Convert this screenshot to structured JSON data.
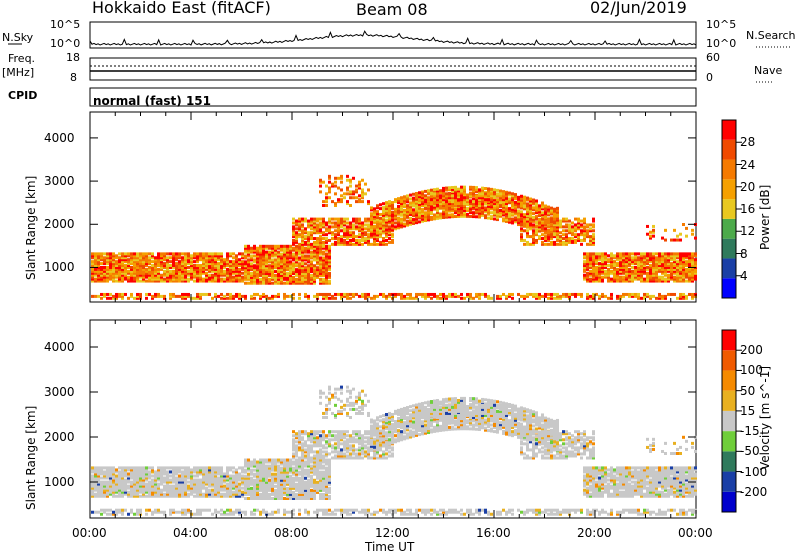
{
  "header": {
    "station": "Hokkaido East (fitACF)",
    "beam": "Beam 08",
    "date": "02/Jun/2019"
  },
  "top_panels": {
    "nsky_label": "N.Sky",
    "nsky_ticks": [
      "10^5",
      "10^0"
    ],
    "nsearch_label": "N.Search",
    "nsearch_ticks": [
      "10^5",
      "10^0"
    ],
    "freq_label": "Freq.",
    "freq_unit": "[MHz]",
    "freq_ticks": [
      "18",
      "8"
    ],
    "nave_label": "Nave",
    "nave_ticks": [
      "60",
      "0"
    ],
    "cpid_label": "CPID",
    "cpid_value": "normal (fast) 151"
  },
  "colors": {
    "power_scale": [
      "#0000ff",
      "#1a3fa6",
      "#2f7a5c",
      "#4caa4a",
      "#e8c820",
      "#f5a000",
      "#f57a00",
      "#f04a00",
      "#ff0000"
    ],
    "velocity_scale": [
      "#0000cc",
      "#1a3fa6",
      "#2f7a5c",
      "#6fce3a",
      "#c8c8c8",
      "#e8b020",
      "#f58a00",
      "#f05a00",
      "#ff0000"
    ]
  },
  "chart_data": [
    {
      "type": "heatmap",
      "title": "",
      "ylabel": "Slant Range [km]",
      "xlabel": "",
      "y_ticks": [
        "1000",
        "2000",
        "3000",
        "4000"
      ],
      "ylim": [
        200,
        4600
      ],
      "colorbar_label": "Power [dB]",
      "colorbar_ticks": [
        "28",
        "24",
        "20",
        "16",
        "12",
        "8",
        "4"
      ],
      "clim": [
        0,
        32
      ]
    },
    {
      "type": "heatmap",
      "title": "",
      "ylabel": "Slant Range [km]",
      "xlabel": "Time UT",
      "x_ticks": [
        "00:00",
        "04:00",
        "08:00",
        "12:00",
        "16:00",
        "20:00",
        "00:00"
      ],
      "y_ticks": [
        "1000",
        "2000",
        "3000",
        "4000"
      ],
      "ylim": [
        200,
        4600
      ],
      "colorbar_label": "Velocity [m s^-1]",
      "colorbar_ticks": [
        "200",
        "100",
        "50",
        "15",
        "-15",
        "-50",
        "-100",
        "-200"
      ],
      "clim": [
        -250,
        250
      ]
    }
  ]
}
